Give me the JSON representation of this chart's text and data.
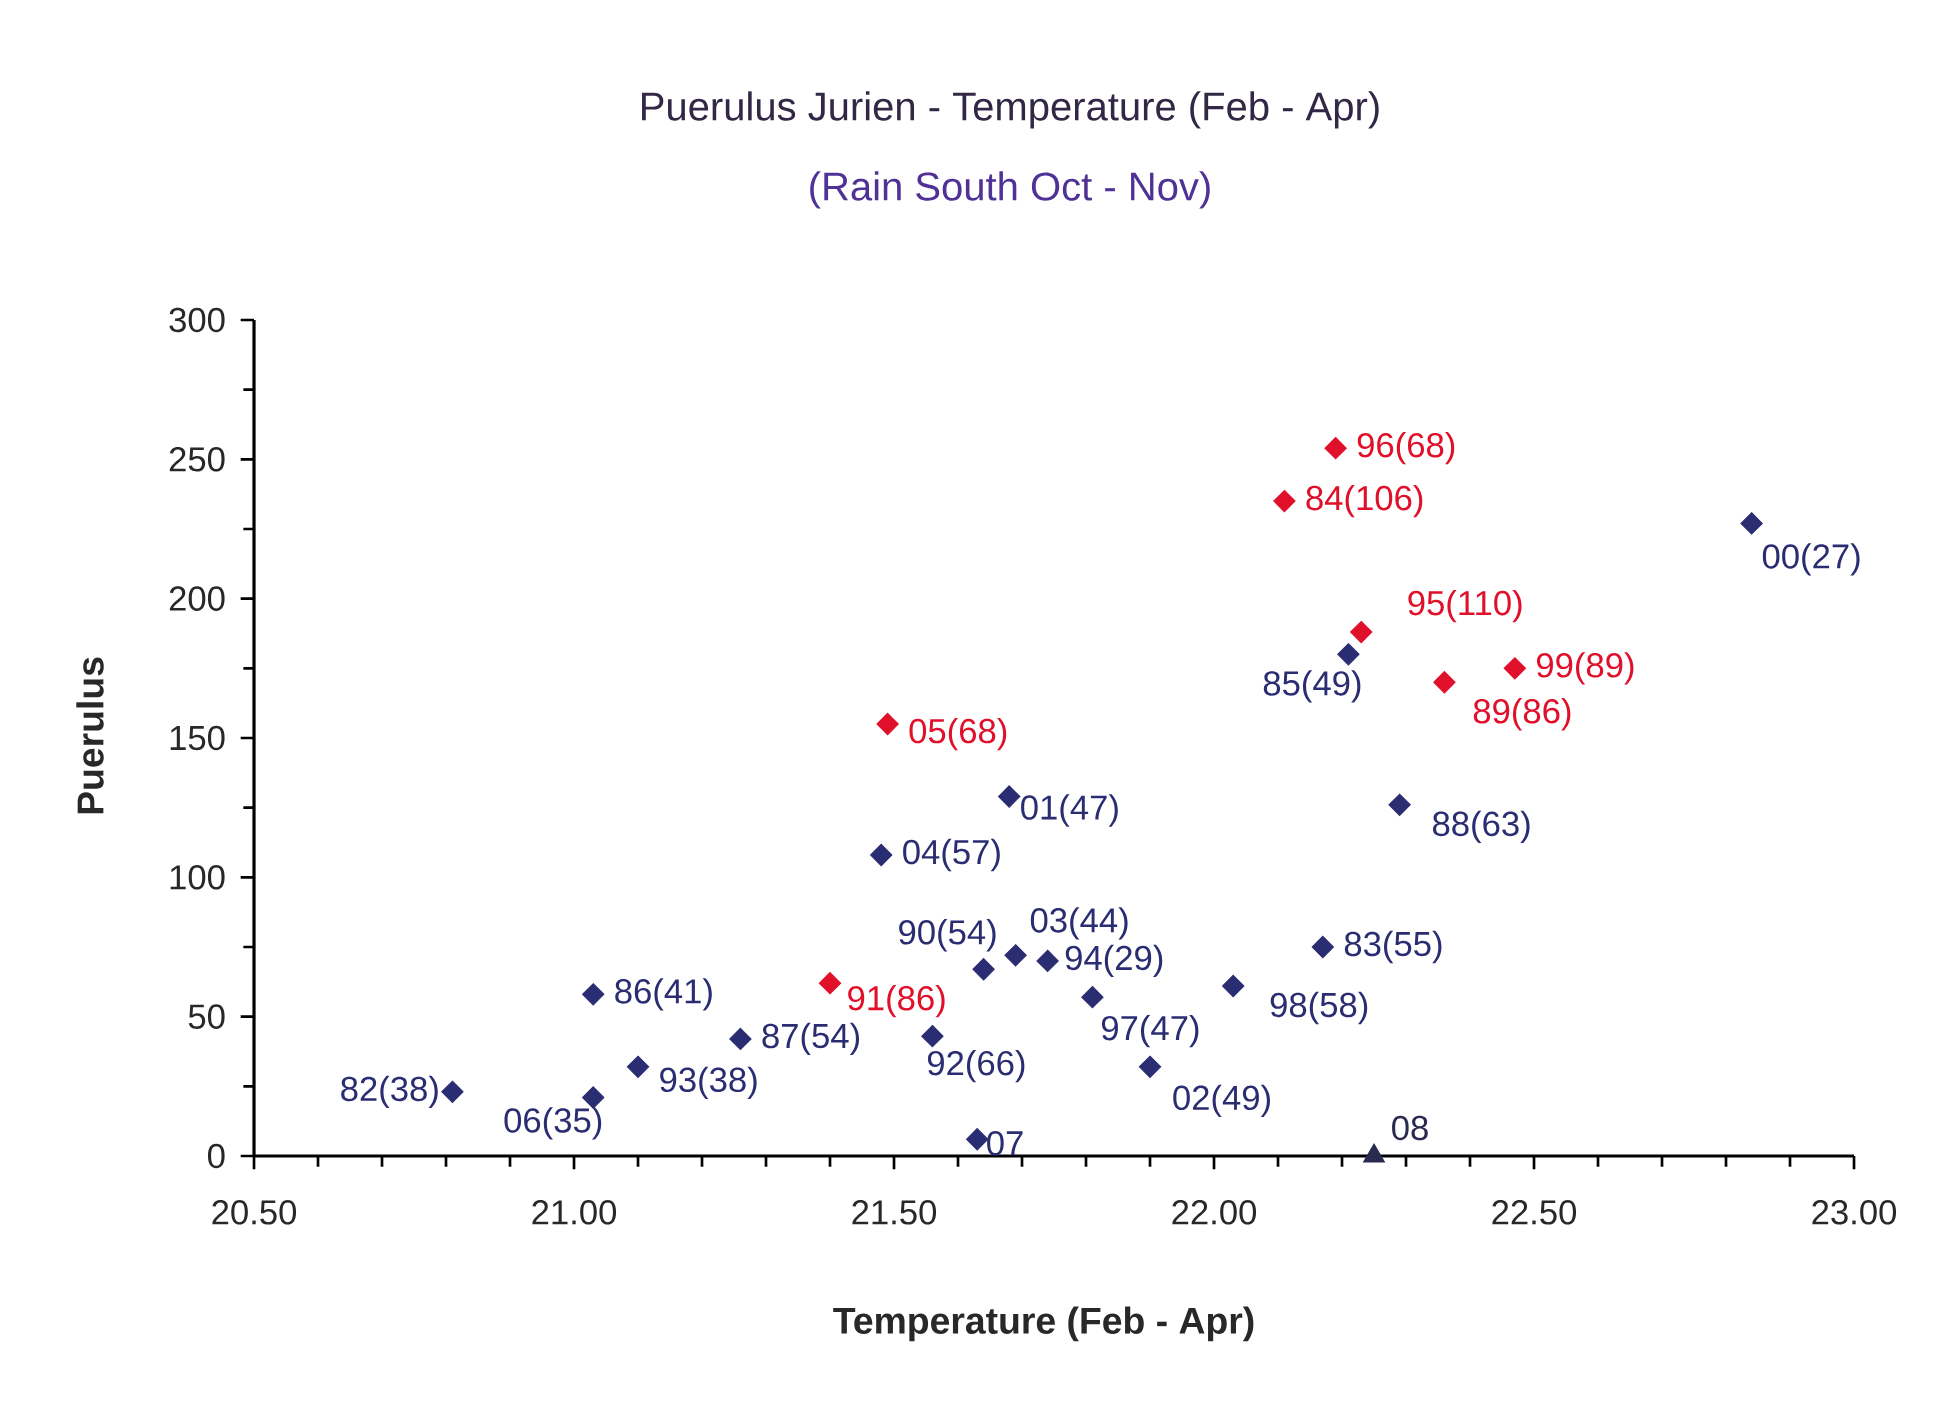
{
  "chart_data": {
    "type": "scatter",
    "title": "Puerulus Jurien - Temperature (Feb - Apr)",
    "subtitle": "(Rain South Oct - Nov)",
    "xlabel": "Temperature (Feb - Apr)",
    "ylabel": "Puerulus",
    "xlim": [
      20.5,
      23.0
    ],
    "ylim": [
      0,
      300
    ],
    "xticks": [
      {
        "value": 20.5,
        "label": "20.50"
      },
      {
        "value": 21.0,
        "label": "21.00"
      },
      {
        "value": 21.5,
        "label": "21.50"
      },
      {
        "value": 22.0,
        "label": "22.00"
      },
      {
        "value": 22.5,
        "label": "22.50"
      },
      {
        "value": 23.0,
        "label": "23.00"
      }
    ],
    "yticks": [
      0,
      50,
      100,
      150,
      200,
      250,
      300
    ],
    "marker": "diamond",
    "series": [
      {
        "color": "#2b2d72",
        "x": [
          20.81,
          21.03,
          21.03,
          21.1,
          21.26,
          21.56,
          21.63,
          21.64,
          21.69,
          21.74,
          21.81,
          21.9,
          21.48,
          21.68,
          22.03,
          22.17,
          22.21,
          22.29,
          22.84
        ],
        "values": [
          23,
          21,
          58,
          32,
          42,
          43,
          6,
          67,
          72,
          70,
          57,
          32,
          108,
          129,
          61,
          75,
          180,
          126,
          227
        ]
      },
      {
        "color": "#e0102a",
        "x": [
          21.4,
          21.49,
          22.19,
          22.11,
          22.23,
          22.36,
          22.47
        ],
        "values": [
          62,
          155,
          254,
          235,
          188,
          170,
          175
        ]
      },
      {
        "color": "#2a2a50",
        "marker": "triangle",
        "x": [
          22.25
        ],
        "values": [
          0
        ]
      }
    ],
    "annotations": [
      {
        "text": "82(38)",
        "x": 20.81,
        "y": 23
      },
      {
        "text": "06(35)",
        "x": 21.03,
        "y": 21
      },
      {
        "text": "86(41)",
        "x": 21.03,
        "y": 58
      },
      {
        "text": "93(38)",
        "x": 21.1,
        "y": 32
      },
      {
        "text": "87(54)",
        "x": 21.26,
        "y": 42
      },
      {
        "text": "91(86)",
        "x": 21.4,
        "y": 62
      },
      {
        "text": "92(66)",
        "x": 21.56,
        "y": 43
      },
      {
        "text": "07",
        "x": 21.63,
        "y": 6
      },
      {
        "text": "90(54)",
        "x": 21.64,
        "y": 67
      },
      {
        "text": "03(44)",
        "x": 21.69,
        "y": 72
      },
      {
        "text": "94(29)",
        "x": 21.74,
        "y": 70
      },
      {
        "text": "97(47)",
        "x": 21.81,
        "y": 57
      },
      {
        "text": "02(49)",
        "x": 21.9,
        "y": 32
      },
      {
        "text": "04(57)",
        "x": 21.48,
        "y": 108
      },
      {
        "text": "05(68)",
        "x": 21.49,
        "y": 155
      },
      {
        "text": "01(47)",
        "x": 21.68,
        "y": 129
      },
      {
        "text": "98(58)",
        "x": 22.03,
        "y": 61
      },
      {
        "text": "83(55)",
        "x": 22.17,
        "y": 75
      },
      {
        "text": "85(49)",
        "x": 22.21,
        "y": 180
      },
      {
        "text": "89(86)",
        "x": 22.36,
        "y": 170
      },
      {
        "text": "88(63)",
        "x": 22.29,
        "y": 126
      },
      {
        "text": "96(68)",
        "x": 22.19,
        "y": 254
      },
      {
        "text": "84(106)",
        "x": 22.11,
        "y": 235
      },
      {
        "text": "00(27)",
        "x": 22.84,
        "y": 227
      },
      {
        "text": "95(110)",
        "x": 22.23,
        "y": 188
      },
      {
        "text": "99(89)",
        "x": 22.47,
        "y": 175
      },
      {
        "text": "08",
        "x": 22.25,
        "y": 0
      }
    ]
  }
}
